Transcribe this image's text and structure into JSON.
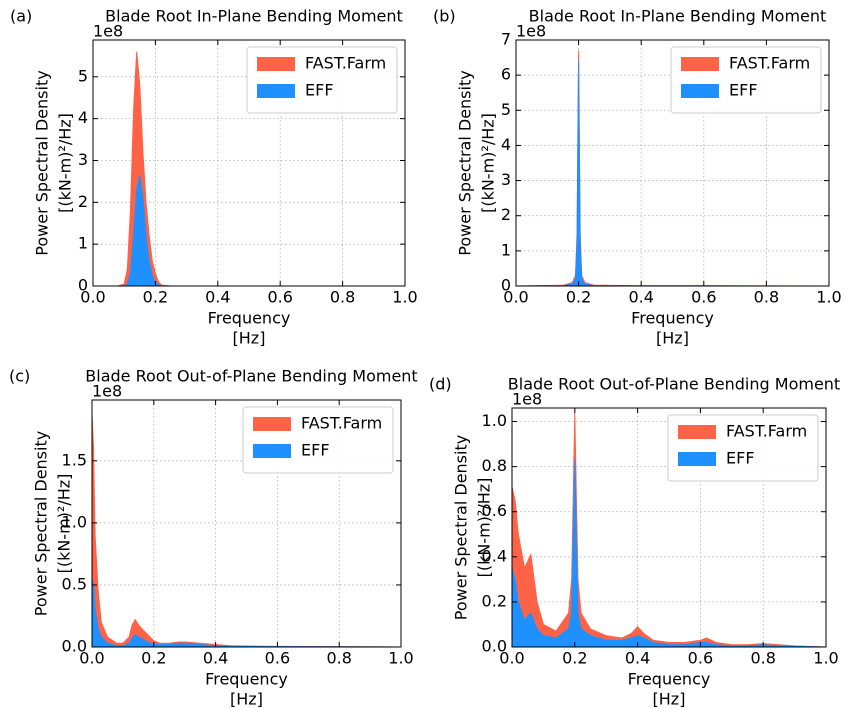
{
  "chart_data": [
    {
      "type": "area",
      "panel_label": "(a)",
      "title": "Blade Root In-Plane Bending Moment",
      "offset_label": "1e8",
      "x_label": [
        "Frequency",
        "[Hz]"
      ],
      "y_label": [
        "Power Spectral Density",
        "[(kN-m)²/Hz]"
      ],
      "x": [
        0,
        0.08,
        0.1,
        0.11,
        0.12,
        0.13,
        0.14,
        0.15,
        0.16,
        0.17,
        0.18,
        0.19,
        0.2,
        0.21,
        0.22,
        0.25,
        0.4,
        0.6,
        0.8,
        1.0
      ],
      "series": [
        {
          "name": "FAST.Farm",
          "color": "#ff6347",
          "values": [
            0,
            0,
            0.05,
            0.4,
            1.8,
            4.2,
            5.6,
            4.8,
            3.2,
            2.0,
            1.2,
            0.6,
            0.3,
            0.1,
            0.02,
            0,
            0,
            0,
            0,
            0
          ]
        },
        {
          "name": "EFF",
          "color": "#1e90ff",
          "values": [
            0,
            0,
            0,
            0.05,
            0.3,
            1.2,
            2.3,
            2.65,
            2.1,
            1.2,
            0.6,
            0.25,
            0.1,
            0.03,
            0,
            0,
            0,
            0,
            0,
            0
          ]
        }
      ],
      "xlim": [
        0,
        1
      ],
      "ylim": [
        0,
        5.88
      ],
      "xticks": [
        {
          "value": 0,
          "label": "0.0"
        },
        0.2,
        0.4,
        0.6,
        0.8,
        {
          "value": 1,
          "label": "1.0"
        }
      ],
      "yticks": [
        0,
        1,
        2,
        3,
        4,
        5
      ],
      "grid": true,
      "legend": "upper right"
    },
    {
      "type": "area",
      "panel_label": "(b)",
      "title": "Blade Root In-Plane Bending Moment",
      "offset_label": "1e8",
      "x_label": [
        "Frequency",
        "[Hz]"
      ],
      "y_label": [
        "Power Spectral Density",
        "[(kN-m)²/Hz]"
      ],
      "x": [
        0,
        0.15,
        0.18,
        0.19,
        0.195,
        0.2,
        0.205,
        0.21,
        0.22,
        0.25,
        0.4,
        0.6,
        0.8,
        1.0
      ],
      "series": [
        {
          "name": "FAST.Farm",
          "color": "#ff6347",
          "values": [
            0,
            0.02,
            0.1,
            0.3,
            1.5,
            6.7,
            1.5,
            0.3,
            0.1,
            0.02,
            0.01,
            0.01,
            0.005,
            0
          ]
        },
        {
          "name": "EFF",
          "color": "#1e90ff",
          "values": [
            0,
            0.01,
            0.05,
            0.2,
            1.2,
            6.4,
            1.2,
            0.2,
            0.05,
            0.01,
            0,
            0,
            0,
            0
          ]
        }
      ],
      "xlim": [
        0,
        1
      ],
      "ylim": [
        0,
        7
      ],
      "xticks": [
        {
          "value": 0,
          "label": "0.0"
        },
        0.2,
        0.4,
        0.6,
        0.8,
        {
          "value": 1,
          "label": "1.0"
        }
      ],
      "yticks": [
        0,
        1,
        2,
        3,
        4,
        5,
        6,
        7
      ],
      "grid": true,
      "legend": "upper right"
    },
    {
      "type": "area",
      "panel_label": "(c)",
      "title": "Blade Root Out-of-Plane Bending Moment",
      "offset_label": "1e8",
      "x_label": [
        "Frequency",
        "[Hz]"
      ],
      "y_label": [
        "Power Spectral Density",
        "[(kN-m)²/Hz]"
      ],
      "x": [
        0,
        0.005,
        0.01,
        0.02,
        0.03,
        0.05,
        0.08,
        0.1,
        0.12,
        0.13,
        0.14,
        0.15,
        0.16,
        0.18,
        0.2,
        0.22,
        0.25,
        0.28,
        0.3,
        0.35,
        0.4,
        0.45,
        0.6,
        0.8,
        1.0
      ],
      "series": [
        {
          "name": "FAST.Farm",
          "color": "#ff6347",
          "values": [
            1.88,
            1.6,
            0.9,
            0.45,
            0.2,
            0.08,
            0.03,
            0.03,
            0.08,
            0.18,
            0.22,
            0.18,
            0.15,
            0.1,
            0.05,
            0.03,
            0.03,
            0.04,
            0.04,
            0.03,
            0.02,
            0.01,
            0.005,
            0.003,
            0
          ]
        },
        {
          "name": "EFF",
          "color": "#1e90ff",
          "values": [
            0.55,
            0.5,
            0.3,
            0.15,
            0.08,
            0.03,
            0.01,
            0.01,
            0.03,
            0.07,
            0.1,
            0.08,
            0.07,
            0.04,
            0.02,
            0.02,
            0.02,
            0.03,
            0.03,
            0.02,
            0.01,
            0.005,
            0.003,
            0.002,
            0
          ]
        }
      ],
      "xlim": [
        0,
        1
      ],
      "ylim": [
        0,
        1.99
      ],
      "xticks": [
        {
          "value": 0,
          "label": "0.0"
        },
        0.2,
        0.4,
        0.6,
        0.8,
        {
          "value": 1,
          "label": "1.0"
        }
      ],
      "yticks": [
        {
          "value": 0,
          "label": "0.0"
        },
        0.5,
        {
          "value": 1,
          "label": "1.0"
        },
        1.5
      ],
      "grid": true,
      "legend": "upper right"
    },
    {
      "type": "area",
      "panel_label": "(d)",
      "title": "Blade Root Out-of-Plane Bending Moment",
      "offset_label": "1e8",
      "x_label": [
        "Frequency",
        "[Hz]"
      ],
      "y_label": [
        "Power Spectral Density",
        "[(kN-m)²/Hz]"
      ],
      "x": [
        0,
        0.01,
        0.02,
        0.04,
        0.06,
        0.08,
        0.1,
        0.14,
        0.18,
        0.19,
        0.2,
        0.21,
        0.22,
        0.25,
        0.3,
        0.35,
        0.38,
        0.4,
        0.42,
        0.45,
        0.5,
        0.55,
        0.6,
        0.62,
        0.65,
        0.7,
        0.75,
        0.8,
        0.85,
        0.9,
        1.0
      ],
      "series": [
        {
          "name": "FAST.Farm",
          "color": "#ff6347",
          "values": [
            0.71,
            0.65,
            0.5,
            0.35,
            0.41,
            0.2,
            0.1,
            0.07,
            0.15,
            0.3,
            1.04,
            0.3,
            0.15,
            0.08,
            0.05,
            0.04,
            0.06,
            0.09,
            0.06,
            0.03,
            0.02,
            0.02,
            0.03,
            0.04,
            0.02,
            0.01,
            0.01,
            0.015,
            0.01,
            0.005,
            0
          ]
        },
        {
          "name": "EFF",
          "color": "#1e90ff",
          "values": [
            0.35,
            0.3,
            0.2,
            0.12,
            0.15,
            0.08,
            0.05,
            0.04,
            0.08,
            0.15,
            0.83,
            0.15,
            0.08,
            0.05,
            0.03,
            0.03,
            0.04,
            0.05,
            0.04,
            0.02,
            0.01,
            0.01,
            0.02,
            0.02,
            0.01,
            0.005,
            0.005,
            0.01,
            0.005,
            0.003,
            0
          ]
        }
      ],
      "xlim": [
        0,
        1
      ],
      "ylim": [
        0,
        1.06
      ],
      "xticks": [
        {
          "value": 0,
          "label": "0.0"
        },
        0.2,
        0.4,
        0.6,
        0.8,
        {
          "value": 1,
          "label": "1.0"
        }
      ],
      "yticks": [
        {
          "value": 0,
          "label": "0.0"
        },
        0.2,
        0.4,
        0.6,
        0.8,
        {
          "value": 1,
          "label": "1.0"
        }
      ],
      "grid": true,
      "legend": "upper right"
    }
  ]
}
